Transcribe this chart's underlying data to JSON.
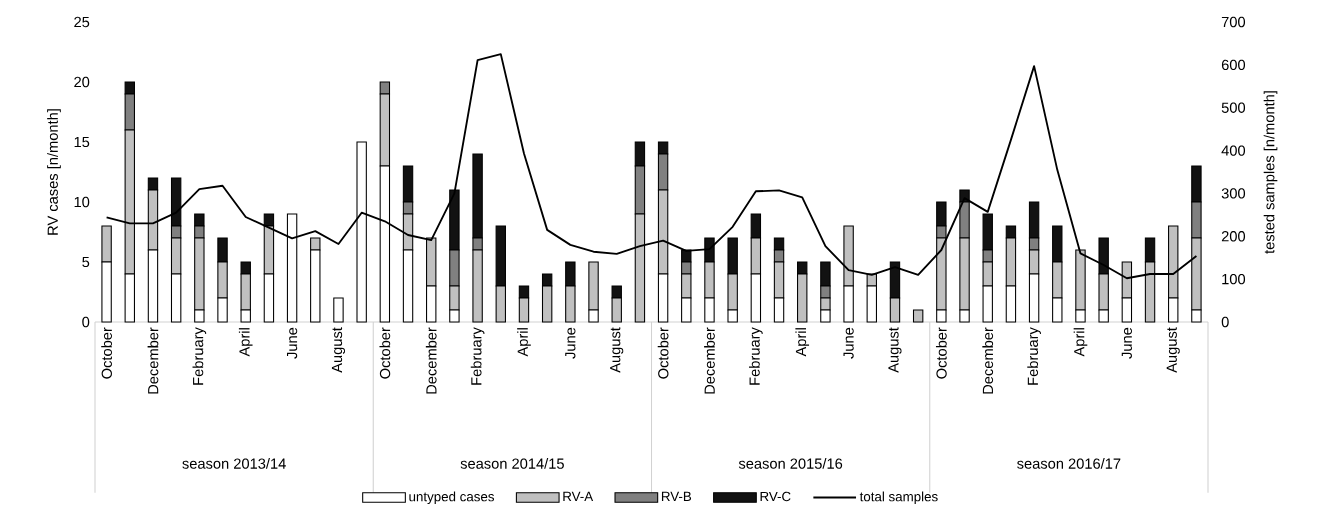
{
  "chart_data": {
    "type": "bar",
    "stacked": true,
    "categories": [
      "October",
      null,
      "December",
      null,
      "February",
      null,
      "April",
      null,
      "June",
      null,
      "August",
      null,
      "October",
      null,
      "December",
      null,
      "February",
      null,
      "April",
      null,
      "June",
      null,
      "August",
      null,
      "October",
      null,
      "December",
      null,
      "February",
      null,
      "April",
      null,
      "June",
      null,
      "August",
      null,
      "October",
      null,
      "December",
      null,
      "February",
      null,
      "April",
      null,
      "June",
      null,
      "August",
      null
    ],
    "annotations": [
      "season 2013/14",
      "season 2014/15",
      "season 2015/16",
      "season 2016/17"
    ],
    "ylabel": "RV cases [n/month]",
    "y2label": "tested samples [n/month]",
    "ylim": [
      0,
      25
    ],
    "yticks": [
      0,
      5,
      10,
      15,
      20,
      25
    ],
    "y2lim": [
      0,
      700
    ],
    "y2ticks": [
      0,
      100,
      200,
      300,
      400,
      500,
      600,
      700
    ],
    "legend": "bottom",
    "grid": false,
    "series": [
      {
        "name": "untyped cases",
        "color": "#ffffff",
        "values": [
          5,
          4,
          6,
          4,
          1,
          2,
          1,
          4,
          9,
          6,
          2,
          15,
          13,
          6,
          3,
          1,
          0,
          0,
          0,
          0,
          0,
          1,
          0,
          0,
          4,
          2,
          2,
          1,
          4,
          2,
          0,
          1,
          3,
          3,
          0,
          0,
          1,
          1,
          3,
          3,
          4,
          2,
          1,
          1,
          2,
          0,
          2,
          1
        ]
      },
      {
        "name": "RV-A",
        "color": "#c0c0c0",
        "values": [
          3,
          12,
          5,
          3,
          6,
          3,
          3,
          4,
          0,
          1,
          0,
          0,
          6,
          3,
          4,
          2,
          6,
          3,
          2,
          3,
          3,
          4,
          2,
          9,
          7,
          2,
          3,
          3,
          3,
          3,
          4,
          1,
          5,
          1,
          2,
          1,
          6,
          6,
          2,
          4,
          2,
          3,
          5,
          3,
          3,
          5,
          6,
          6
        ]
      },
      {
        "name": "RV-B",
        "color": "#808080",
        "values": [
          0,
          3,
          0,
          1,
          1,
          0,
          0,
          0,
          0,
          0,
          0,
          0,
          1,
          1,
          0,
          3,
          1,
          0,
          0,
          0,
          0,
          0,
          0,
          4,
          3,
          1,
          0,
          0,
          0,
          1,
          0,
          1,
          0,
          0,
          0,
          0,
          1,
          3,
          1,
          0,
          1,
          0,
          0,
          0,
          0,
          0,
          0,
          3
        ]
      },
      {
        "name": "RV-C",
        "color": "#121212",
        "values": [
          0,
          1,
          1,
          4,
          1,
          2,
          1,
          1,
          0,
          0,
          0,
          0,
          0,
          3,
          0,
          5,
          7,
          5,
          1,
          1,
          2,
          0,
          1,
          2,
          1,
          1,
          2,
          3,
          2,
          1,
          1,
          2,
          0,
          0,
          3,
          0,
          2,
          1,
          3,
          1,
          3,
          3,
          0,
          3,
          0,
          2,
          0,
          3
        ]
      },
      {
        "name": "total samples",
        "type": "line",
        "axis": "y2",
        "color": "#000000",
        "line_style": "solid",
        "values": [
          244,
          230,
          230,
          255,
          310,
          318,
          245,
          220,
          195,
          212,
          182,
          255,
          235,
          203,
          191,
          300,
          611,
          625,
          393,
          215,
          180,
          164,
          159,
          177,
          190,
          166,
          170,
          222,
          305,
          307,
          291,
          177,
          121,
          110,
          128,
          110,
          168,
          289,
          257,
          425,
          597,
          355,
          160,
          133,
          102,
          112,
          112,
          154
        ]
      }
    ]
  }
}
